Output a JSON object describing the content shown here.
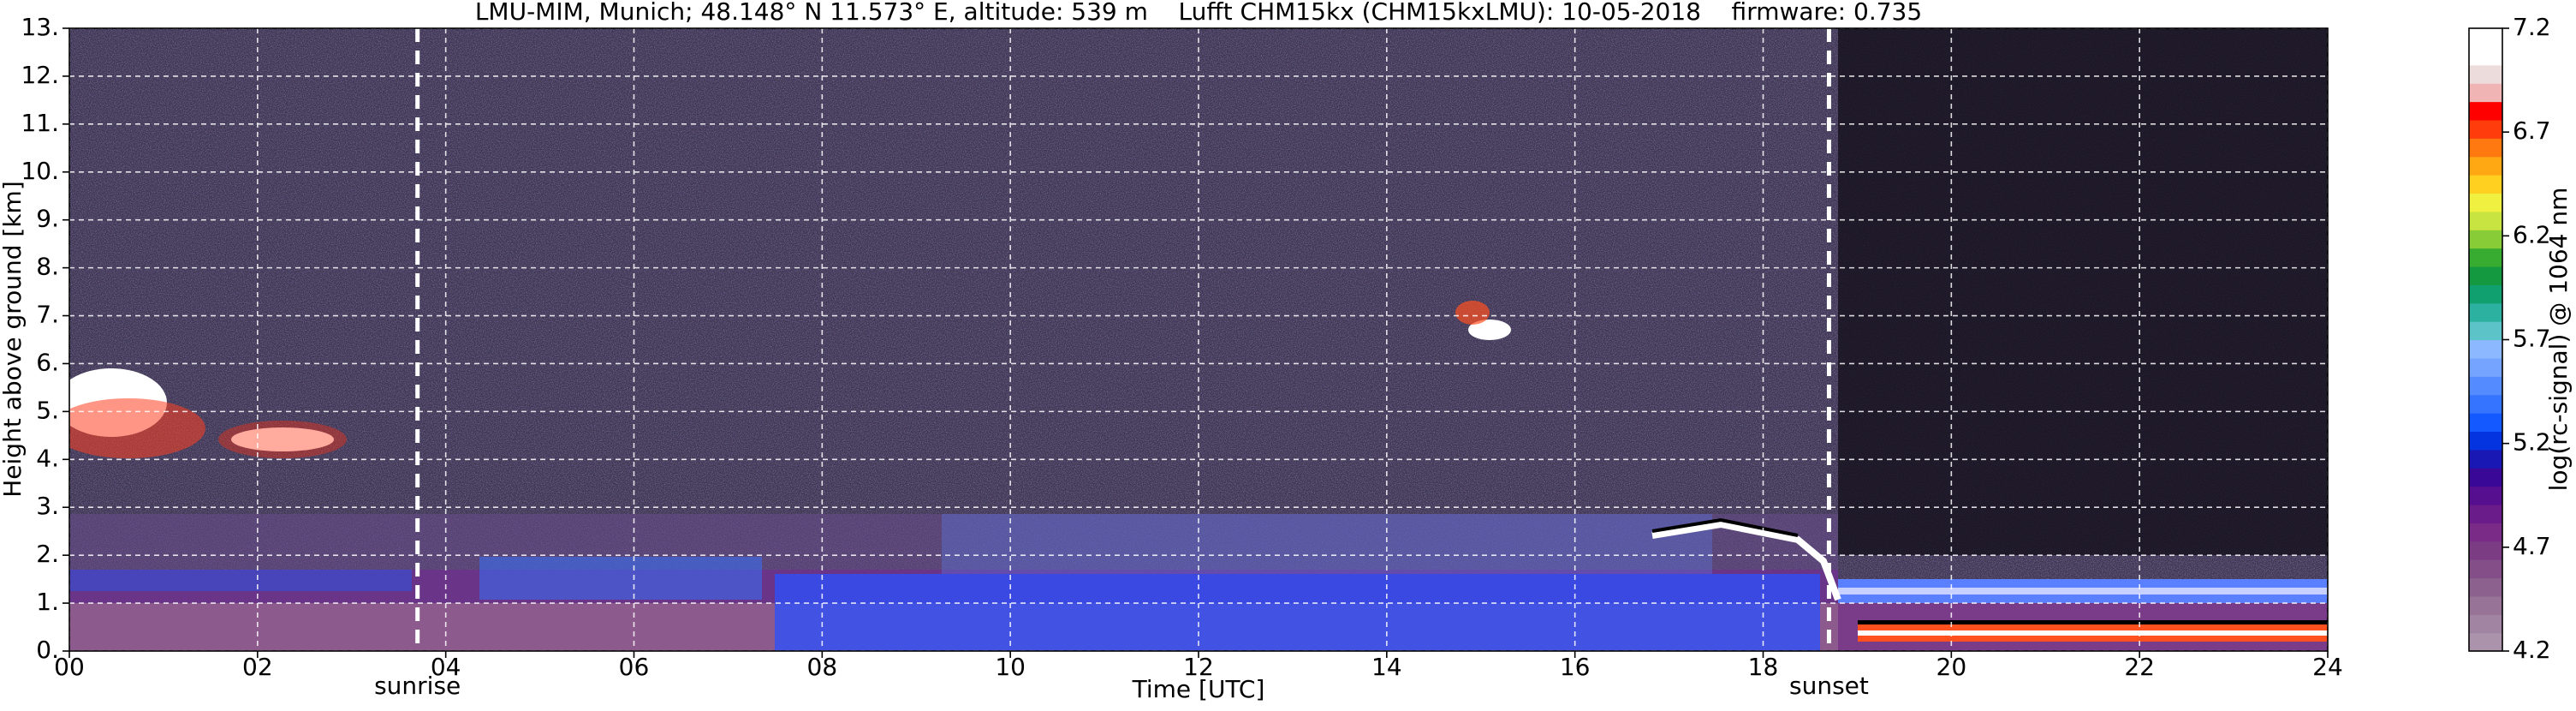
{
  "chart_data": {
    "type": "heatmap",
    "title": "LMU-MIM, Munich; 48.148° N 11.573° E, altitude: 539 m    Lufft CHM15kx (CHM15kxLMU): 10-05-2018    firmware: 0.735",
    "x_label": "Time [UTC]",
    "y_label": "Height above ground [km]",
    "xlim": [
      0,
      24
    ],
    "xticks": [
      {
        "value": 0,
        "label": "00"
      },
      {
        "value": 2,
        "label": "02"
      },
      {
        "value": 4,
        "label": "04"
      },
      {
        "value": 6,
        "label": "06"
      },
      {
        "value": 8,
        "label": "08"
      },
      10,
      12,
      14,
      16,
      18,
      20,
      22,
      24
    ],
    "ylim": [
      0,
      13
    ],
    "yticks": [
      {
        "value": 0,
        "label": "0."
      },
      {
        "value": 1,
        "label": "1."
      },
      {
        "value": 2,
        "label": "2."
      },
      {
        "value": 3,
        "label": "3."
      },
      {
        "value": 4,
        "label": "4."
      },
      {
        "value": 5,
        "label": "5."
      },
      {
        "value": 6,
        "label": "6."
      },
      {
        "value": 7,
        "label": "7."
      },
      {
        "value": 8,
        "label": "8."
      },
      {
        "value": 9,
        "label": "9."
      },
      {
        "value": 10,
        "label": "10."
      },
      {
        "value": 11,
        "label": "11."
      },
      {
        "value": 12,
        "label": "12."
      },
      {
        "value": 13,
        "label": "13."
      }
    ],
    "grid": true,
    "annotations": [
      {
        "label": "sunrise",
        "x": 3.7
      },
      {
        "label": "sunset",
        "x": 18.7
      }
    ],
    "colorbar": {
      "label": "log(rc-signal) @ 1064 nm",
      "lim": [
        4.2,
        7.2
      ],
      "ticks": [
        4.2,
        4.7,
        5.2,
        5.7,
        6.2,
        6.7,
        7.2
      ],
      "colors": [
        "#ab93ab",
        "#a184a2",
        "#967397",
        "#8c618e",
        "#844f88",
        "#7b3c84",
        "#7a2b88",
        "#6a1c8a",
        "#560f8e",
        "#3a0896",
        "#1a18b4",
        "#0434e0",
        "#1458ff",
        "#3474ff",
        "#548cff",
        "#74a4ff",
        "#8cb8ff",
        "#5cc4c8",
        "#2cb0a0",
        "#10a070",
        "#149840",
        "#38ac30",
        "#88cc38",
        "#c8e440",
        "#f0f040",
        "#ffd020",
        "#ffa814",
        "#ff7810",
        "#ff3c0c",
        "#ff0000",
        "#f0b4b4",
        "#ecdcdc",
        "#ffffff",
        "#ffffff"
      ]
    }
  }
}
